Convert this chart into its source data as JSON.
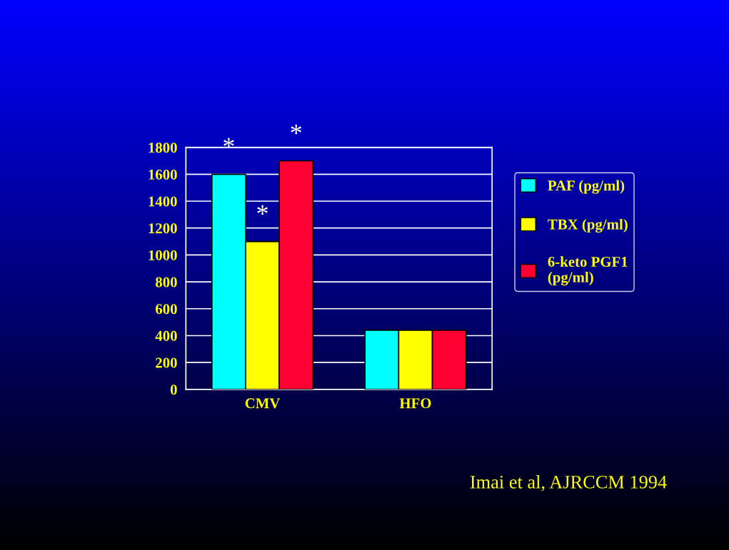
{
  "chart_data": {
    "type": "bar",
    "categories": [
      "CMV",
      "HFO"
    ],
    "series": [
      {
        "name": "PAF (pg/ml)",
        "color": "#00ffff",
        "values": [
          1600,
          440
        ]
      },
      {
        "name": "TBX (pg/ml)",
        "color": "#ffff00",
        "values": [
          1100,
          440
        ]
      },
      {
        "name": "6-keto PGF1 (pg/ml)",
        "color": "#ff0033",
        "values": [
          1700,
          440
        ]
      }
    ],
    "ylim": [
      0,
      1800
    ],
    "yticks": [
      0,
      200,
      400,
      600,
      800,
      1000,
      1200,
      1400,
      1600,
      1800
    ],
    "grid": "y",
    "legend": "right",
    "annotations": [
      "*",
      "*",
      "*",
      "Imai et al, AJRCCM 1994"
    ]
  }
}
